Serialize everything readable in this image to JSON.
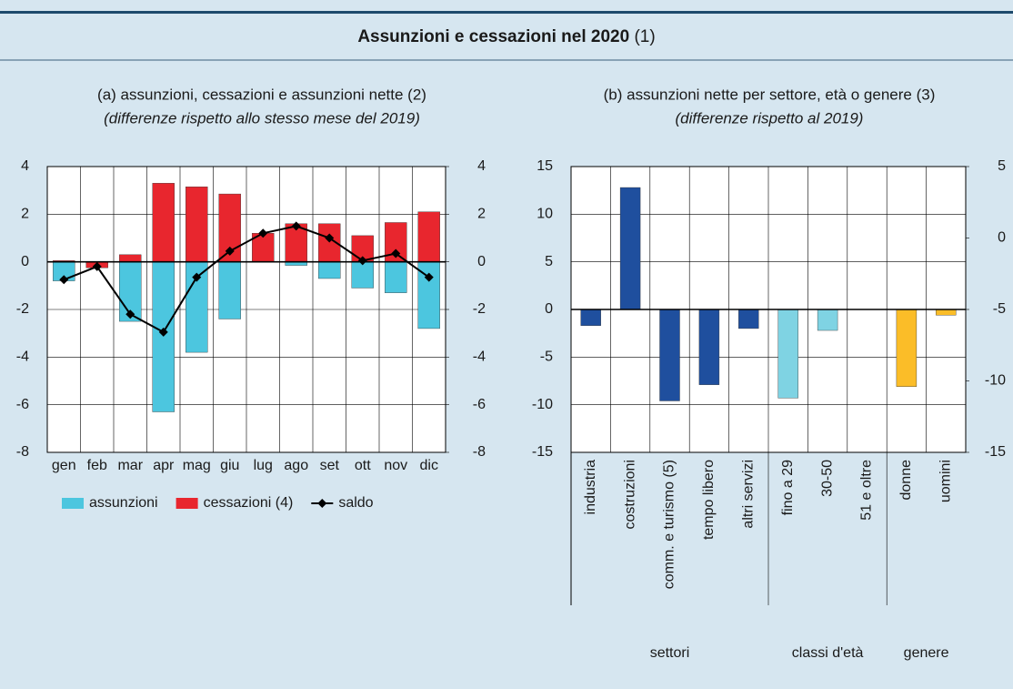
{
  "header": {
    "title": "Assunzioni e cessazioni nel 2020",
    "title_note": "(1)"
  },
  "chart_data": [
    {
      "type": "bar",
      "title": "(a) assunzioni, cessazioni e assunzioni nette (2)",
      "subtitle": "(differenze rispetto allo stesso mese del 2019)",
      "categories": [
        "gen",
        "feb",
        "mar",
        "apr",
        "mag",
        "giu",
        "lug",
        "ago",
        "set",
        "ott",
        "nov",
        "dic"
      ],
      "series": [
        {
          "name": "assunzioni",
          "type": "bar",
          "color": "#4cc6df",
          "values": [
            -0.8,
            -0.05,
            -2.5,
            -6.3,
            -3.8,
            -2.4,
            0,
            -0.15,
            -0.7,
            -1.1,
            -1.3,
            -2.8
          ]
        },
        {
          "name": "cessazioni (4)",
          "type": "bar",
          "color": "#e8262e",
          "values": [
            0.05,
            -0.25,
            0.3,
            3.3,
            3.15,
            2.85,
            1.2,
            1.6,
            1.6,
            1.1,
            1.65,
            2.1
          ]
        },
        {
          "name": "saldo",
          "type": "line",
          "color": "#000000",
          "values": [
            -0.75,
            -0.2,
            -2.2,
            -2.95,
            -0.65,
            0.45,
            1.2,
            1.5,
            1.0,
            0.05,
            0.35,
            -0.65
          ]
        }
      ],
      "ylim": [
        -8,
        4
      ],
      "yticks": [
        -8,
        -6,
        -4,
        -2,
        0,
        2,
        4
      ],
      "y2lim": [
        -8,
        4
      ],
      "y2ticks": [
        -8,
        -6,
        -4,
        -2,
        0,
        2,
        4
      ],
      "grid": true,
      "legend": "bottom"
    },
    {
      "type": "bar",
      "title": "(b) assunzioni nette per settore, età o genere (3)",
      "subtitle": "(differenze rispetto al 2019)",
      "categories": [
        "industria",
        "costruzioni",
        "comm. e turismo (5)",
        "tempo libero",
        "altri servizi",
        "fino a 29",
        "30-50",
        "51 e oltre",
        "donne",
        "uomini"
      ],
      "groups": [
        {
          "name": "settori",
          "size": 5,
          "color": "#1f4f9e"
        },
        {
          "name": "classi d'età",
          "size": 3,
          "color": "#7fd3e3"
        },
        {
          "name": "genere",
          "size": 2,
          "color": "#fbbd28"
        }
      ],
      "values": [
        -1.7,
        12.8,
        -9.6,
        -7.9,
        -2.0,
        -9.3,
        -2.2,
        0,
        -8.1,
        -0.6
      ],
      "ylim": [
        -15,
        15
      ],
      "yticks": [
        -15,
        -10,
        -5,
        0,
        5,
        10,
        15
      ],
      "y2lim": [
        -15,
        5
      ],
      "y2ticks": [
        -15,
        -10,
        -5,
        0,
        5
      ],
      "grid": true
    }
  ]
}
